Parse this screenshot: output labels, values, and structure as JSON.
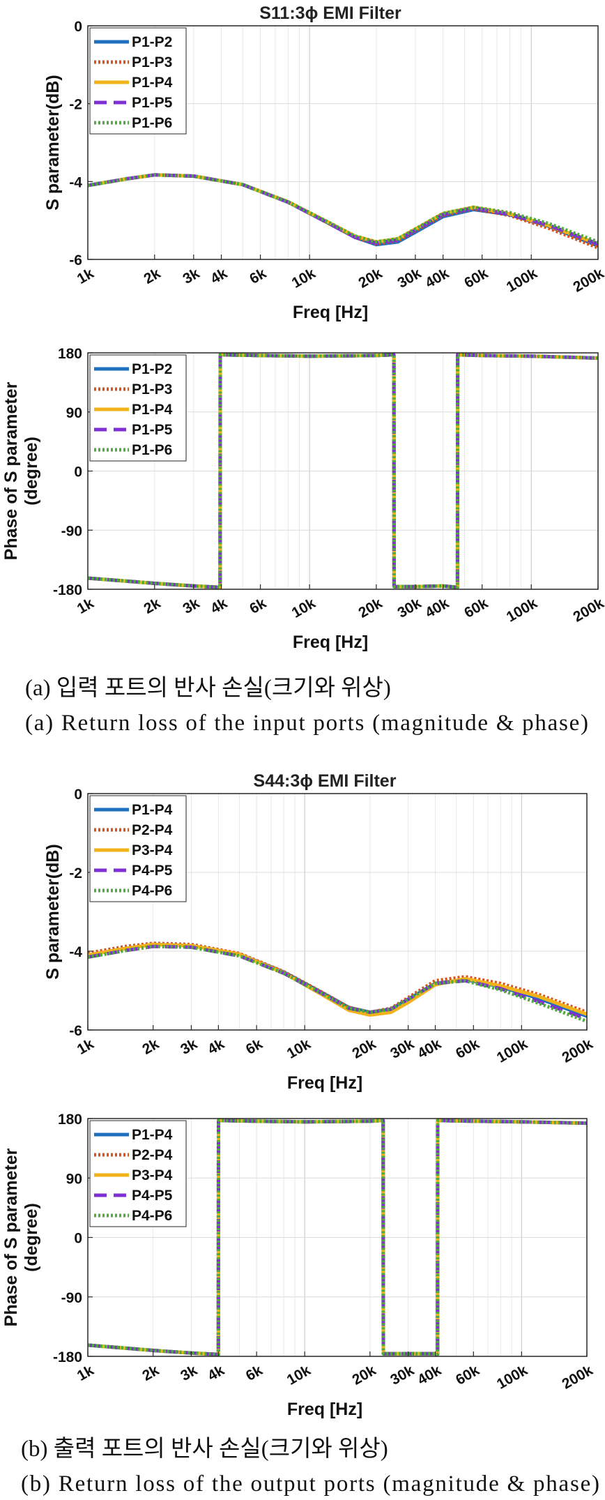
{
  "captions": {
    "a_kr": "(a) 입력 포트의 반사 손실(크기와 위상)",
    "a_en": "(a) Return loss of the input ports (magnitude & phase)",
    "b_kr": "(b) 출력 포트의 반사 손실(크기와 위상)",
    "b_en": "(b) Return loss of the output ports (magnitude & phase)"
  },
  "series_colors": [
    "#1f6fbf",
    "#d95319",
    "#f2b31a",
    "#7e2fd1",
    "#4dac3a"
  ],
  "series_dash": [
    "solid",
    "dot",
    "solid",
    "dash",
    "dot"
  ],
  "chart_data": [
    {
      "type": "line",
      "title": "S11:3ϕ EMI Filter",
      "xlabel": "Freq [Hz]",
      "ylabel": "S parameter(dB)",
      "xscale": "log",
      "xlim": [
        1000,
        200000
      ],
      "ylim": [
        -6,
        0
      ],
      "yticks": [
        0,
        -2,
        -4,
        -6
      ],
      "xtick_values": [
        1000,
        2000,
        3000,
        4000,
        6000,
        10000,
        20000,
        30000,
        40000,
        60000,
        100000,
        200000
      ],
      "xtick_labels": [
        "1k",
        "2k",
        "3k",
        "4k",
        "6k",
        "10k",
        "20k",
        "30k",
        "40k",
        "60k",
        "100k",
        "200k"
      ],
      "legend_position": "top-left",
      "x": [
        1000,
        1500,
        2000,
        3000,
        5000,
        8000,
        12000,
        16000,
        20000,
        25000,
        30000,
        40000,
        55000,
        80000,
        120000,
        200000
      ],
      "series": [
        {
          "name": "P1-P2",
          "values": [
            -4.1,
            -3.93,
            -3.83,
            -3.86,
            -4.08,
            -4.53,
            -5.05,
            -5.43,
            -5.62,
            -5.55,
            -5.3,
            -4.9,
            -4.72,
            -4.85,
            -5.15,
            -5.65
          ]
        },
        {
          "name": "P1-P3",
          "values": [
            -4.1,
            -3.93,
            -3.83,
            -3.86,
            -4.08,
            -4.53,
            -5.05,
            -5.43,
            -5.6,
            -5.52,
            -5.27,
            -4.87,
            -4.7,
            -4.87,
            -5.2,
            -5.7
          ]
        },
        {
          "name": "P1-P4",
          "values": [
            -4.1,
            -3.93,
            -3.83,
            -3.86,
            -4.08,
            -4.52,
            -5.03,
            -5.4,
            -5.55,
            -5.47,
            -5.22,
            -4.82,
            -4.66,
            -4.83,
            -5.13,
            -5.6
          ]
        },
        {
          "name": "P1-P5",
          "values": [
            -4.1,
            -3.93,
            -3.83,
            -3.86,
            -4.08,
            -4.53,
            -5.05,
            -5.43,
            -5.58,
            -5.5,
            -5.25,
            -4.85,
            -4.68,
            -4.84,
            -5.12,
            -5.6
          ]
        },
        {
          "name": "P1-P6",
          "values": [
            -4.1,
            -3.93,
            -3.83,
            -3.86,
            -4.08,
            -4.52,
            -5.03,
            -5.4,
            -5.55,
            -5.47,
            -5.22,
            -4.82,
            -4.66,
            -4.8,
            -5.08,
            -5.55
          ]
        }
      ]
    },
    {
      "type": "line",
      "title": "",
      "xlabel": "Freq [Hz]",
      "ylabel": "Phase of S parameter (degree)",
      "ylabel_lines": [
        "Phase of S parameter",
        "(degree)"
      ],
      "xscale": "log",
      "xlim": [
        1000,
        200000
      ],
      "ylim": [
        -180,
        180
      ],
      "yticks": [
        180,
        90,
        0,
        -90,
        -180
      ],
      "xtick_values": [
        1000,
        2000,
        3000,
        4000,
        6000,
        10000,
        20000,
        30000,
        40000,
        60000,
        100000,
        200000
      ],
      "xtick_labels": [
        "1k",
        "2k",
        "3k",
        "4k",
        "6k",
        "10k",
        "20k",
        "30k",
        "40k",
        "60k",
        "100k",
        "200k"
      ],
      "legend_position": "top-left",
      "x": [
        1000,
        2000,
        3000,
        3950,
        3955,
        6000,
        10000,
        20000,
        24000,
        24050,
        30000,
        40000,
        46500,
        46550,
        60000,
        100000,
        200000
      ],
      "series": [
        {
          "name": "P1-P2",
          "values": [
            -163,
            -171,
            -175,
            -177,
            177,
            176,
            175,
            176,
            177,
            -176,
            -176,
            -175,
            -177,
            177,
            176,
            175,
            172
          ]
        },
        {
          "name": "P1-P3",
          "values": [
            -163,
            -171,
            -175,
            -177,
            177,
            176,
            175,
            176,
            177,
            -176,
            -176,
            -175,
            -177,
            177,
            176,
            175,
            172
          ]
        },
        {
          "name": "P1-P4",
          "values": [
            -163,
            -171,
            -175,
            -177,
            177,
            176,
            175,
            176,
            177,
            -176,
            -176,
            -175,
            -177,
            177,
            176,
            175,
            172
          ]
        },
        {
          "name": "P1-P5",
          "values": [
            -163,
            -171,
            -175,
            -177,
            177,
            176,
            175,
            176,
            177,
            -176,
            -176,
            -175,
            -177,
            177,
            176,
            175,
            172
          ]
        },
        {
          "name": "P1-P6",
          "values": [
            -163,
            -171,
            -175,
            -177,
            177,
            176,
            175,
            176,
            177,
            -176,
            -176,
            -175,
            -177,
            177,
            176,
            175,
            172
          ]
        }
      ]
    },
    {
      "type": "line",
      "title": "S44:3ϕ EMI Filter",
      "xlabel": "Freq [Hz]",
      "ylabel": "S parameter(dB)",
      "xscale": "log",
      "xlim": [
        1000,
        200000
      ],
      "ylim": [
        -6,
        0
      ],
      "yticks": [
        0,
        -2,
        -4,
        -6
      ],
      "xtick_values": [
        1000,
        2000,
        3000,
        4000,
        6000,
        10000,
        20000,
        30000,
        40000,
        60000,
        100000,
        200000
      ],
      "xtick_labels": [
        "1k",
        "2k",
        "3k",
        "4k",
        "6k",
        "10k",
        "20k",
        "30k",
        "40k",
        "60k",
        "100k",
        "200k"
      ],
      "legend_position": "top-left",
      "x": [
        1000,
        1500,
        2000,
        3000,
        5000,
        8000,
        12000,
        16000,
        20000,
        25000,
        30000,
        40000,
        55000,
        80000,
        120000,
        200000
      ],
      "series": [
        {
          "name": "P1-P4",
          "values": [
            -4.1,
            -3.93,
            -3.83,
            -3.86,
            -4.08,
            -4.53,
            -5.05,
            -5.43,
            -5.55,
            -5.47,
            -5.22,
            -4.82,
            -4.72,
            -4.9,
            -5.2,
            -5.65
          ]
        },
        {
          "name": "P2-P4",
          "values": [
            -4.05,
            -3.88,
            -3.8,
            -3.83,
            -4.06,
            -4.52,
            -5.04,
            -5.43,
            -5.55,
            -5.45,
            -5.18,
            -4.75,
            -4.65,
            -4.82,
            -5.1,
            -5.55
          ]
        },
        {
          "name": "P3-P4",
          "values": [
            -4.1,
            -3.93,
            -3.83,
            -3.86,
            -4.08,
            -4.55,
            -5.1,
            -5.5,
            -5.62,
            -5.55,
            -5.3,
            -4.85,
            -4.7,
            -4.88,
            -5.15,
            -5.6
          ]
        },
        {
          "name": "P4-P5",
          "values": [
            -4.15,
            -3.98,
            -3.88,
            -3.9,
            -4.12,
            -4.56,
            -5.07,
            -5.45,
            -5.55,
            -5.47,
            -5.22,
            -4.82,
            -4.75,
            -4.95,
            -5.28,
            -5.72
          ]
        },
        {
          "name": "P4-P6",
          "values": [
            -4.15,
            -3.98,
            -3.88,
            -3.9,
            -4.12,
            -4.56,
            -5.07,
            -5.45,
            -5.55,
            -5.47,
            -5.22,
            -4.82,
            -4.75,
            -4.98,
            -5.32,
            -5.78
          ]
        }
      ]
    },
    {
      "type": "line",
      "title": "",
      "xlabel": "Freq [Hz]",
      "ylabel": "Phase of S parameter (degree)",
      "ylabel_lines": [
        "Phase of S parameter",
        "(degree)"
      ],
      "xscale": "log",
      "xlim": [
        1000,
        200000
      ],
      "ylim": [
        -180,
        180
      ],
      "yticks": [
        180,
        90,
        0,
        -90,
        -180
      ],
      "xtick_values": [
        1000,
        2000,
        3000,
        4000,
        6000,
        10000,
        20000,
        30000,
        40000,
        60000,
        100000,
        200000
      ],
      "xtick_labels": [
        "1k",
        "2k",
        "3k",
        "4k",
        "6k",
        "10k",
        "20k",
        "30k",
        "40k",
        "60k",
        "100k",
        "200k"
      ],
      "legend_position": "top-left",
      "x": [
        1000,
        2000,
        3000,
        4000,
        4005,
        6000,
        10000,
        20000,
        23000,
        23050,
        30000,
        40000,
        41000,
        41050,
        60000,
        100000,
        200000
      ],
      "series": [
        {
          "name": "P1-P4",
          "values": [
            -163,
            -171,
            -175,
            -177,
            177,
            176,
            175,
            176,
            177,
            -176,
            -176,
            -176,
            -177,
            177,
            176,
            175,
            173
          ]
        },
        {
          "name": "P2-P4",
          "values": [
            -163,
            -171,
            -175,
            -177,
            177,
            176,
            175,
            176,
            177,
            -176,
            -176,
            -176,
            -177,
            177,
            176,
            175,
            173
          ]
        },
        {
          "name": "P3-P4",
          "values": [
            -163,
            -171,
            -175,
            -177,
            177,
            176,
            175,
            176,
            177,
            -176,
            -176,
            -176,
            -177,
            177,
            176,
            175,
            173
          ]
        },
        {
          "name": "P4-P5",
          "values": [
            -163,
            -171,
            -175,
            -177,
            177,
            176,
            175,
            176,
            177,
            -176,
            -176,
            -176,
            -177,
            177,
            176,
            175,
            173
          ]
        },
        {
          "name": "P4-P6",
          "values": [
            -163,
            -171,
            -175,
            -177,
            177,
            176,
            175,
            176,
            177,
            -176,
            -176,
            -176,
            -177,
            177,
            176,
            175,
            173
          ]
        }
      ]
    }
  ]
}
